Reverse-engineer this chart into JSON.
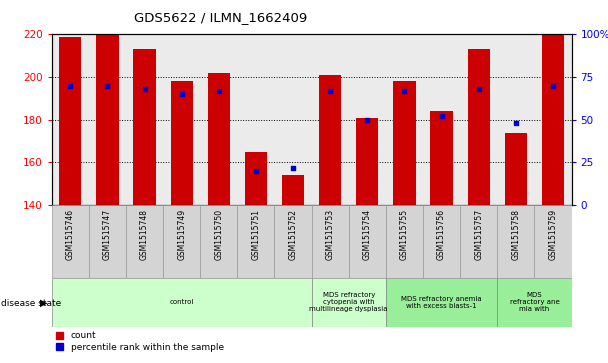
{
  "title": "GDS5622 / ILMN_1662409",
  "samples": [
    "GSM1515746",
    "GSM1515747",
    "GSM1515748",
    "GSM1515749",
    "GSM1515750",
    "GSM1515751",
    "GSM1515752",
    "GSM1515753",
    "GSM1515754",
    "GSM1515755",
    "GSM1515756",
    "GSM1515757",
    "GSM1515758",
    "GSM1515759"
  ],
  "counts": [
    219,
    220,
    213,
    198,
    202,
    165,
    154,
    201,
    181,
    198,
    184,
    213,
    174,
    220
  ],
  "percentile_ranks": [
    70,
    70,
    68,
    65,
    67,
    20,
    22,
    67,
    50,
    67,
    52,
    68,
    48,
    70
  ],
  "ylim_left": [
    140,
    220
  ],
  "ylim_right": [
    0,
    100
  ],
  "yticks_left": [
    140,
    160,
    180,
    200,
    220
  ],
  "yticks_right": [
    0,
    25,
    50,
    75,
    100
  ],
  "ytick_labels_right": [
    "0",
    "25",
    "50",
    "75",
    "100%"
  ],
  "bar_color": "#cc0000",
  "dot_color": "#0000cc",
  "plot_bg": "#e8e8e8",
  "sample_bg": "#d0d0d0",
  "disease_groups": [
    {
      "label": "control",
      "start": 0,
      "end": 7,
      "color": "#ccffcc"
    },
    {
      "label": "MDS refractory\ncytopenia with\nmultilineage dysplasia",
      "start": 7,
      "end": 9,
      "color": "#ccffcc"
    },
    {
      "label": "MDS refractory anemia\nwith excess blasts-1",
      "start": 9,
      "end": 12,
      "color": "#99ee99"
    },
    {
      "label": "MDS\nrefractory ane\nmia with",
      "start": 12,
      "end": 14,
      "color": "#99ee99"
    }
  ]
}
